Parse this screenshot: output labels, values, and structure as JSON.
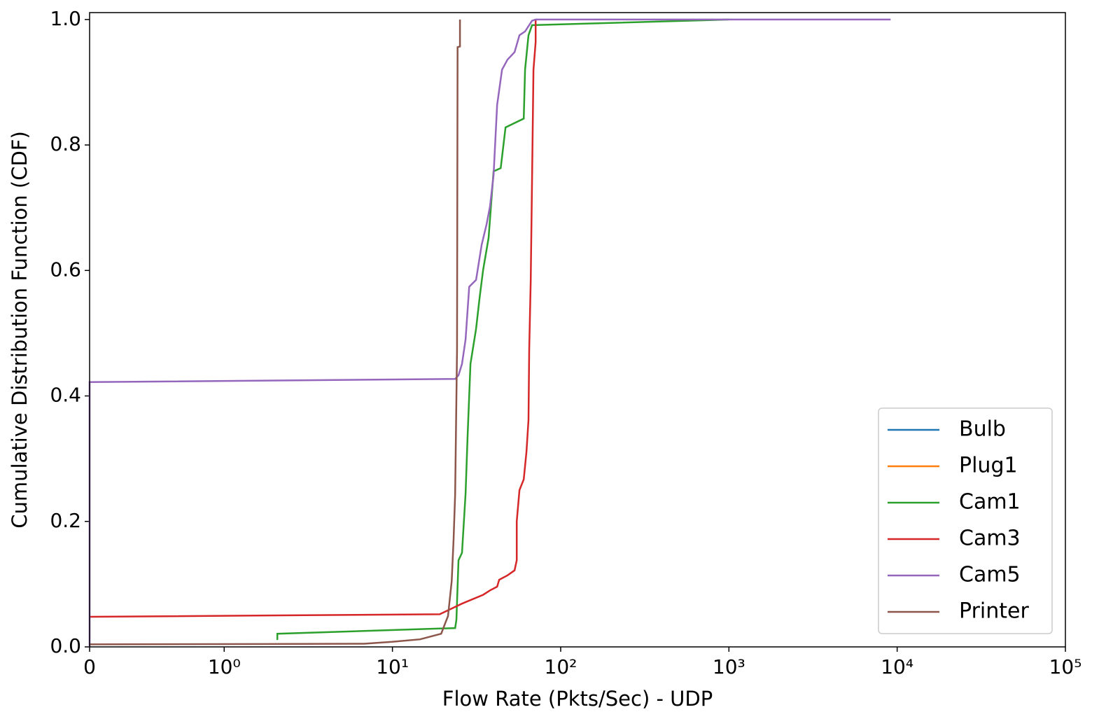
{
  "chart_data": {
    "type": "line",
    "x_label": "Flow Rate (Pkts/Sec) - UDP",
    "y_label": "Cumulative Distribution Function (CDF)",
    "xscale": "symlog",
    "xlim": [
      0,
      100000
    ],
    "xticks": [
      0,
      {
        "value": 1,
        "label": "10⁰"
      },
      {
        "value": 10,
        "label": "10¹"
      },
      {
        "value": 100,
        "label": "10²"
      },
      {
        "value": 1000,
        "label": "10³"
      },
      {
        "value": 10000,
        "label": "10⁴"
      },
      {
        "value": 100000,
        "label": "10⁵"
      }
    ],
    "ylim": [
      0,
      1.011
    ],
    "yticks": [
      {
        "value": 0,
        "label": "0.0"
      },
      0.2,
      0.4,
      0.6,
      0.8,
      {
        "value": 1,
        "label": "1.0"
      }
    ],
    "grid": false,
    "legend": "lower right",
    "series": [
      {
        "name": "Bulb",
        "color": "#1f77b4",
        "x": [],
        "values": []
      },
      {
        "name": "Plug1",
        "color": "#ff7f0e",
        "x": [],
        "values": []
      },
      {
        "name": "Cam1",
        "color": "#2ca02c",
        "x": [
          2.07,
          2.07,
          23.6,
          24.0,
          24.7,
          25.9,
          27.2,
          28.0,
          29.1,
          31.4,
          33.0,
          34.6,
          37.3,
          39.9,
          44.0,
          47.0,
          60.3,
          61.4,
          64.4,
          67.6,
          1000
        ],
        "values": [
          0.011,
          0.021,
          0.03,
          0.043,
          0.138,
          0.15,
          0.244,
          0.339,
          0.451,
          0.507,
          0.557,
          0.601,
          0.652,
          0.758,
          0.763,
          0.828,
          0.842,
          0.92,
          0.975,
          0.991,
          1.0
        ]
      },
      {
        "name": "Cam3",
        "color": "#d62728",
        "x": [
          0,
          19.1,
          25.9,
          34.6,
          38.0,
          41.9,
          43.1,
          48.3,
          53.2,
          54.8,
          54.8,
          56.9,
          60.3,
          62.6,
          64.4,
          65.0,
          66.4,
          67.6,
          68.9,
          71.0,
          71.0
        ],
        "values": [
          0.048,
          0.052,
          0.069,
          0.083,
          0.09,
          0.096,
          0.107,
          0.114,
          0.122,
          0.138,
          0.2,
          0.25,
          0.267,
          0.311,
          0.362,
          0.473,
          0.585,
          0.747,
          0.92,
          0.964,
          1.0
        ]
      },
      {
        "name": "Cam5",
        "color": "#9467bd",
        "x": [
          0,
          0,
          23.6,
          24.7,
          25.9,
          27.2,
          28.6,
          31.4,
          33.9,
          36.3,
          38.0,
          39.9,
          41.9,
          44.8,
          48.3,
          53.2,
          56.9,
          61.4,
          67.6,
          71.0,
          9140
        ],
        "values": [
          0,
          0.422,
          0.427,
          0.433,
          0.451,
          0.49,
          0.574,
          0.585,
          0.641,
          0.674,
          0.702,
          0.752,
          0.864,
          0.92,
          0.936,
          0.948,
          0.975,
          0.981,
          0.998,
          1.0,
          1.0
        ]
      },
      {
        "name": "Printer",
        "color": "#8c564b",
        "x": [
          0,
          6.78,
          9.95,
          14.6,
          19.5,
          20.6,
          21.4,
          22.5,
          23.1,
          23.6,
          24.2,
          24.4,
          25.2,
          25.2
        ],
        "values": [
          0.004,
          0.005,
          0.008,
          0.012,
          0.021,
          0.038,
          0.049,
          0.105,
          0.172,
          0.243,
          0.473,
          0.956,
          0.957,
          1.0
        ]
      }
    ]
  }
}
